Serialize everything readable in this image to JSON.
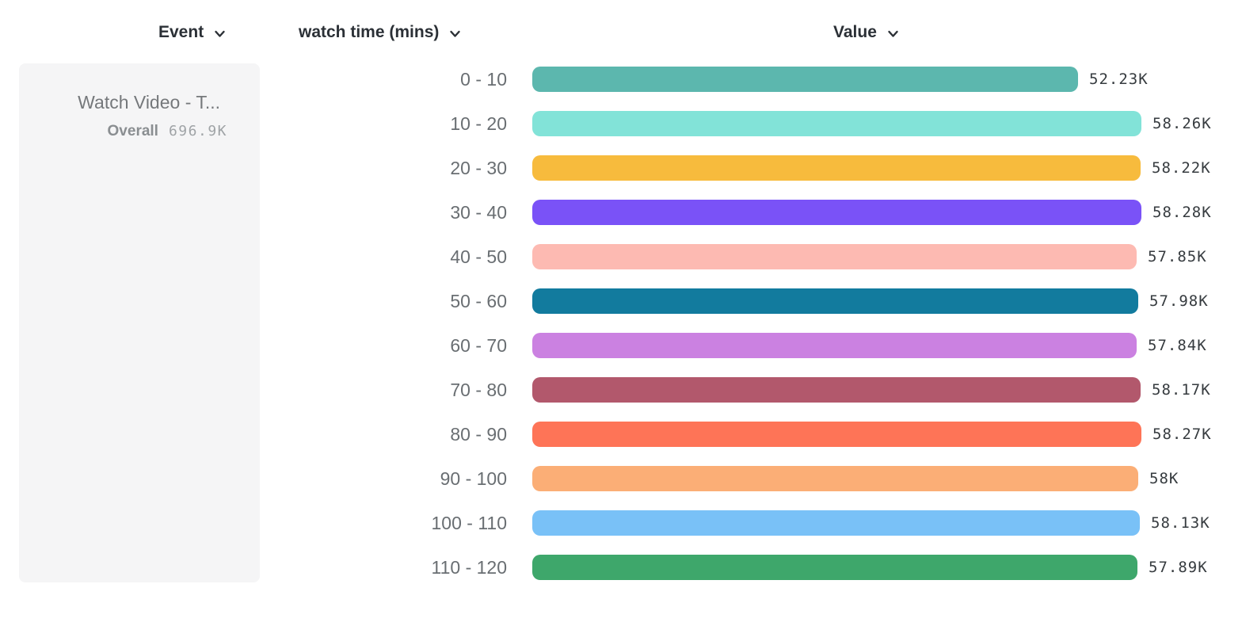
{
  "header": {
    "columns": [
      {
        "label": "Event",
        "icon": "chevron-down"
      },
      {
        "label": "watch time (mins)",
        "icon": "chevron-down"
      },
      {
        "label": "Value",
        "icon": "chevron-down"
      }
    ]
  },
  "event_card": {
    "title": "Watch Video - T...",
    "overall_label": "Overall",
    "overall_value": "696.9K"
  },
  "chart_data": {
    "type": "bar",
    "orientation": "horizontal",
    "title": "",
    "xlabel": "Value",
    "ylabel": "watch time (mins)",
    "xlim": [
      0,
      58280
    ],
    "grid": false,
    "legend": "none",
    "categories": [
      "0 - 10",
      "10 - 20",
      "20 - 30",
      "30 - 40",
      "40 - 50",
      "50 - 60",
      "60 - 70",
      "70 - 80",
      "80 - 90",
      "90 - 100",
      "100 - 110",
      "110 - 120"
    ],
    "values": [
      52230,
      58260,
      58220,
      58280,
      57850,
      57980,
      57840,
      58170,
      58270,
      58000,
      58130,
      57890
    ],
    "display_values": [
      "52.23K",
      "58.26K",
      "58.22K",
      "58.28K",
      "57.85K",
      "57.98K",
      "57.84K",
      "58.17K",
      "58.27K",
      "58K",
      "58.13K",
      "57.89K"
    ],
    "colors": [
      "#5cb7ae",
      "#82e3d8",
      "#f7bb3d",
      "#7a52f7",
      "#fdbab2",
      "#127b9e",
      "#cb81e1",
      "#b2586c",
      "#fe7457",
      "#fbae76",
      "#79c1f7",
      "#3ea76b"
    ]
  }
}
